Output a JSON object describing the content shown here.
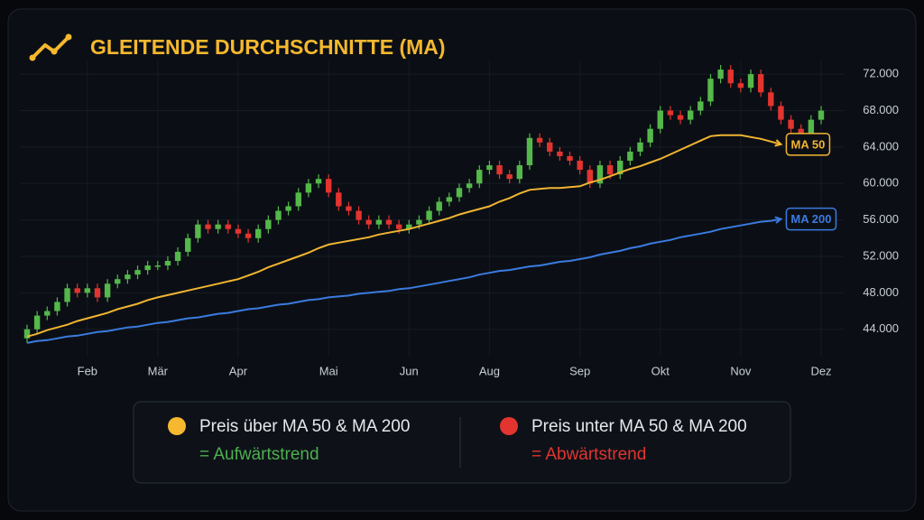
{
  "chart_data": {
    "type": "candlestick",
    "title": "GLEITENDE DURCHSCHNITTE (MA)",
    "categories": [
      null,
      null,
      null,
      null,
      null,
      null,
      "Feb",
      null,
      null,
      null,
      null,
      null,
      null,
      "Mär",
      null,
      null,
      null,
      null,
      null,
      null,
      null,
      "Apr",
      null,
      null,
      null,
      null,
      null,
      null,
      null,
      null,
      "Mai",
      null,
      null,
      null,
      null,
      null,
      null,
      null,
      "Jun",
      null,
      null,
      null,
      null,
      null,
      null,
      null,
      "Aug",
      null,
      null,
      null,
      null,
      null,
      null,
      null,
      null,
      "Sep",
      null,
      null,
      null,
      null,
      null,
      null,
      null,
      "Okt",
      null,
      null,
      null,
      null,
      null,
      null,
      null,
      "Nov",
      null,
      null,
      null,
      null,
      null,
      null,
      null,
      "Dez"
    ],
    "open": [
      43000,
      44000,
      45500,
      46000,
      47000,
      48500,
      48000,
      48500,
      47500,
      49000,
      49500,
      50000,
      50500,
      51000,
      51000,
      51500,
      52500,
      54000,
      55500,
      55000,
      55500,
      55000,
      54500,
      54000,
      55000,
      56000,
      57000,
      57500,
      59000,
      60000,
      60500,
      59000,
      57500,
      57000,
      56000,
      55500,
      56000,
      55500,
      55000,
      55500,
      56000,
      57000,
      58000,
      58500,
      59500,
      60000,
      61500,
      62000,
      61000,
      60500,
      62000,
      65000,
      64500,
      63500,
      63000,
      62500,
      61500,
      60000,
      62000,
      61000,
      62500,
      63500,
      64500,
      66000,
      68000,
      67500,
      67000,
      68000,
      69000,
      71500,
      72500,
      71000,
      70500,
      72000,
      70000,
      68500,
      67000,
      66000,
      65500,
      67000
    ],
    "high": [
      44500,
      46000,
      46500,
      47500,
      49000,
      49000,
      49000,
      49000,
      49500,
      50000,
      50500,
      51000,
      51500,
      51500,
      52000,
      53000,
      54500,
      56000,
      56000,
      56000,
      56000,
      55500,
      55000,
      55500,
      56500,
      57500,
      58000,
      59500,
      60500,
      61000,
      61000,
      59500,
      58000,
      57500,
      56500,
      56500,
      56500,
      56000,
      56000,
      56500,
      57500,
      58500,
      59000,
      60000,
      60500,
      62000,
      62500,
      62500,
      61500,
      62500,
      65500,
      65500,
      65000,
      64000,
      63500,
      63000,
      62000,
      62500,
      62500,
      63000,
      64000,
      65000,
      66500,
      68500,
      68500,
      68000,
      68500,
      69500,
      72000,
      73000,
      73000,
      71500,
      72500,
      72500,
      70500,
      69000,
      67500,
      66500,
      67500,
      68500
    ],
    "low": [
      42500,
      43500,
      45000,
      45500,
      46500,
      47500,
      47500,
      47000,
      47000,
      48500,
      49000,
      49500,
      50000,
      50500,
      50500,
      51000,
      52000,
      53500,
      54500,
      54500,
      54500,
      54000,
      53500,
      53500,
      54500,
      55500,
      56500,
      57000,
      58500,
      59500,
      58500,
      57000,
      56500,
      55500,
      55000,
      55000,
      55000,
      54500,
      54500,
      55000,
      55500,
      56500,
      57500,
      58000,
      59000,
      59500,
      61000,
      60500,
      60000,
      60000,
      61500,
      64000,
      63000,
      62500,
      62000,
      61000,
      59500,
      59500,
      60500,
      60500,
      62000,
      63000,
      64000,
      65500,
      67000,
      66500,
      66500,
      67500,
      68500,
      71000,
      70500,
      70000,
      70000,
      69500,
      68000,
      66500,
      65500,
      65000,
      65000,
      66500
    ],
    "close": [
      44000,
      45500,
      46000,
      47000,
      48500,
      48000,
      48500,
      47500,
      49000,
      49500,
      50000,
      50500,
      51000,
      51000,
      51500,
      52500,
      54000,
      55500,
      55000,
      55500,
      55000,
      54500,
      54000,
      55000,
      56000,
      57000,
      57500,
      59000,
      60000,
      60500,
      59000,
      57500,
      57000,
      56000,
      55500,
      56000,
      55500,
      55000,
      55500,
      56000,
      57000,
      58000,
      58500,
      59500,
      60000,
      61500,
      62000,
      61000,
      60500,
      62000,
      65000,
      64500,
      63500,
      63000,
      62500,
      61500,
      60000,
      62000,
      61000,
      62500,
      63500,
      64500,
      66000,
      68000,
      67500,
      67000,
      68000,
      69000,
      71500,
      72500,
      71000,
      70500,
      72000,
      70000,
      68500,
      67000,
      66000,
      65500,
      67000,
      68000
    ],
    "up_color": "#55b84a",
    "down_color": "#e3342f",
    "series": [
      {
        "name": "MA 50",
        "color": "#f2b431",
        "values": [
          43200,
          43500,
          43900,
          44200,
          44500,
          44900,
          45200,
          45500,
          45800,
          46200,
          46500,
          46800,
          47200,
          47500,
          47750,
          48000,
          48250,
          48500,
          48750,
          49000,
          49250,
          49500,
          49900,
          50300,
          50800,
          51200,
          51600,
          52000,
          52400,
          52900,
          53300,
          53500,
          53700,
          53900,
          54100,
          54400,
          54600,
          54800,
          55000,
          55300,
          55600,
          55900,
          56200,
          56600,
          56900,
          57200,
          57500,
          58000,
          58400,
          58900,
          59300,
          59400,
          59500,
          59500,
          59600,
          59700,
          60100,
          60400,
          60800,
          61200,
          61600,
          61900,
          62300,
          62700,
          63200,
          63700,
          64200,
          64700,
          65200,
          65300,
          65300,
          65300,
          65100,
          64900,
          64600,
          64300,
          null,
          null,
          null,
          null
        ]
      },
      {
        "name": "MA 200",
        "color": "#3b7be0",
        "values": [
          42500,
          42700,
          42800,
          43000,
          43200,
          43300,
          43500,
          43700,
          43800,
          44000,
          44200,
          44300,
          44500,
          44700,
          44800,
          45000,
          45200,
          45300,
          45500,
          45700,
          45800,
          46000,
          46200,
          46300,
          46500,
          46700,
          46800,
          47000,
          47200,
          47300,
          47500,
          47600,
          47700,
          47900,
          48000,
          48100,
          48200,
          48400,
          48500,
          48700,
          48900,
          49100,
          49300,
          49500,
          49700,
          50000,
          50200,
          50400,
          50500,
          50700,
          50900,
          51000,
          51200,
          51400,
          51500,
          51700,
          51900,
          52200,
          52400,
          52600,
          52900,
          53100,
          53400,
          53600,
          53800,
          54100,
          54300,
          54500,
          54700,
          55000,
          55200,
          55400,
          55600,
          55800,
          55900,
          56100,
          null,
          null,
          null,
          null
        ]
      }
    ],
    "ylim": [
      41000,
      73500
    ],
    "yticks": [
      {
        "value": 44000,
        "label": "44.000"
      },
      {
        "value": 48000,
        "label": "48.000"
      },
      {
        "value": 52000,
        "label": "52.000"
      },
      {
        "value": 56000,
        "label": "56.000"
      },
      {
        "value": 60000,
        "label": "60.000"
      },
      {
        "value": 64000,
        "label": "64.000"
      },
      {
        "value": 68000,
        "label": "68.000"
      },
      {
        "value": 72000,
        "label": "72.000"
      }
    ],
    "grid": true
  },
  "legend_box": {
    "items": [
      {
        "text": "Preis über MA 50 & MA 200",
        "result": "= Aufwärtstrend",
        "dot_color": "#f5b82e",
        "result_color": "#4caf50"
      },
      {
        "text": "Preis unter MA 50 & MA 200",
        "result": "= Abwärtstrend",
        "dot_color": "#e3342f",
        "result_color": "#e3342f"
      }
    ]
  }
}
